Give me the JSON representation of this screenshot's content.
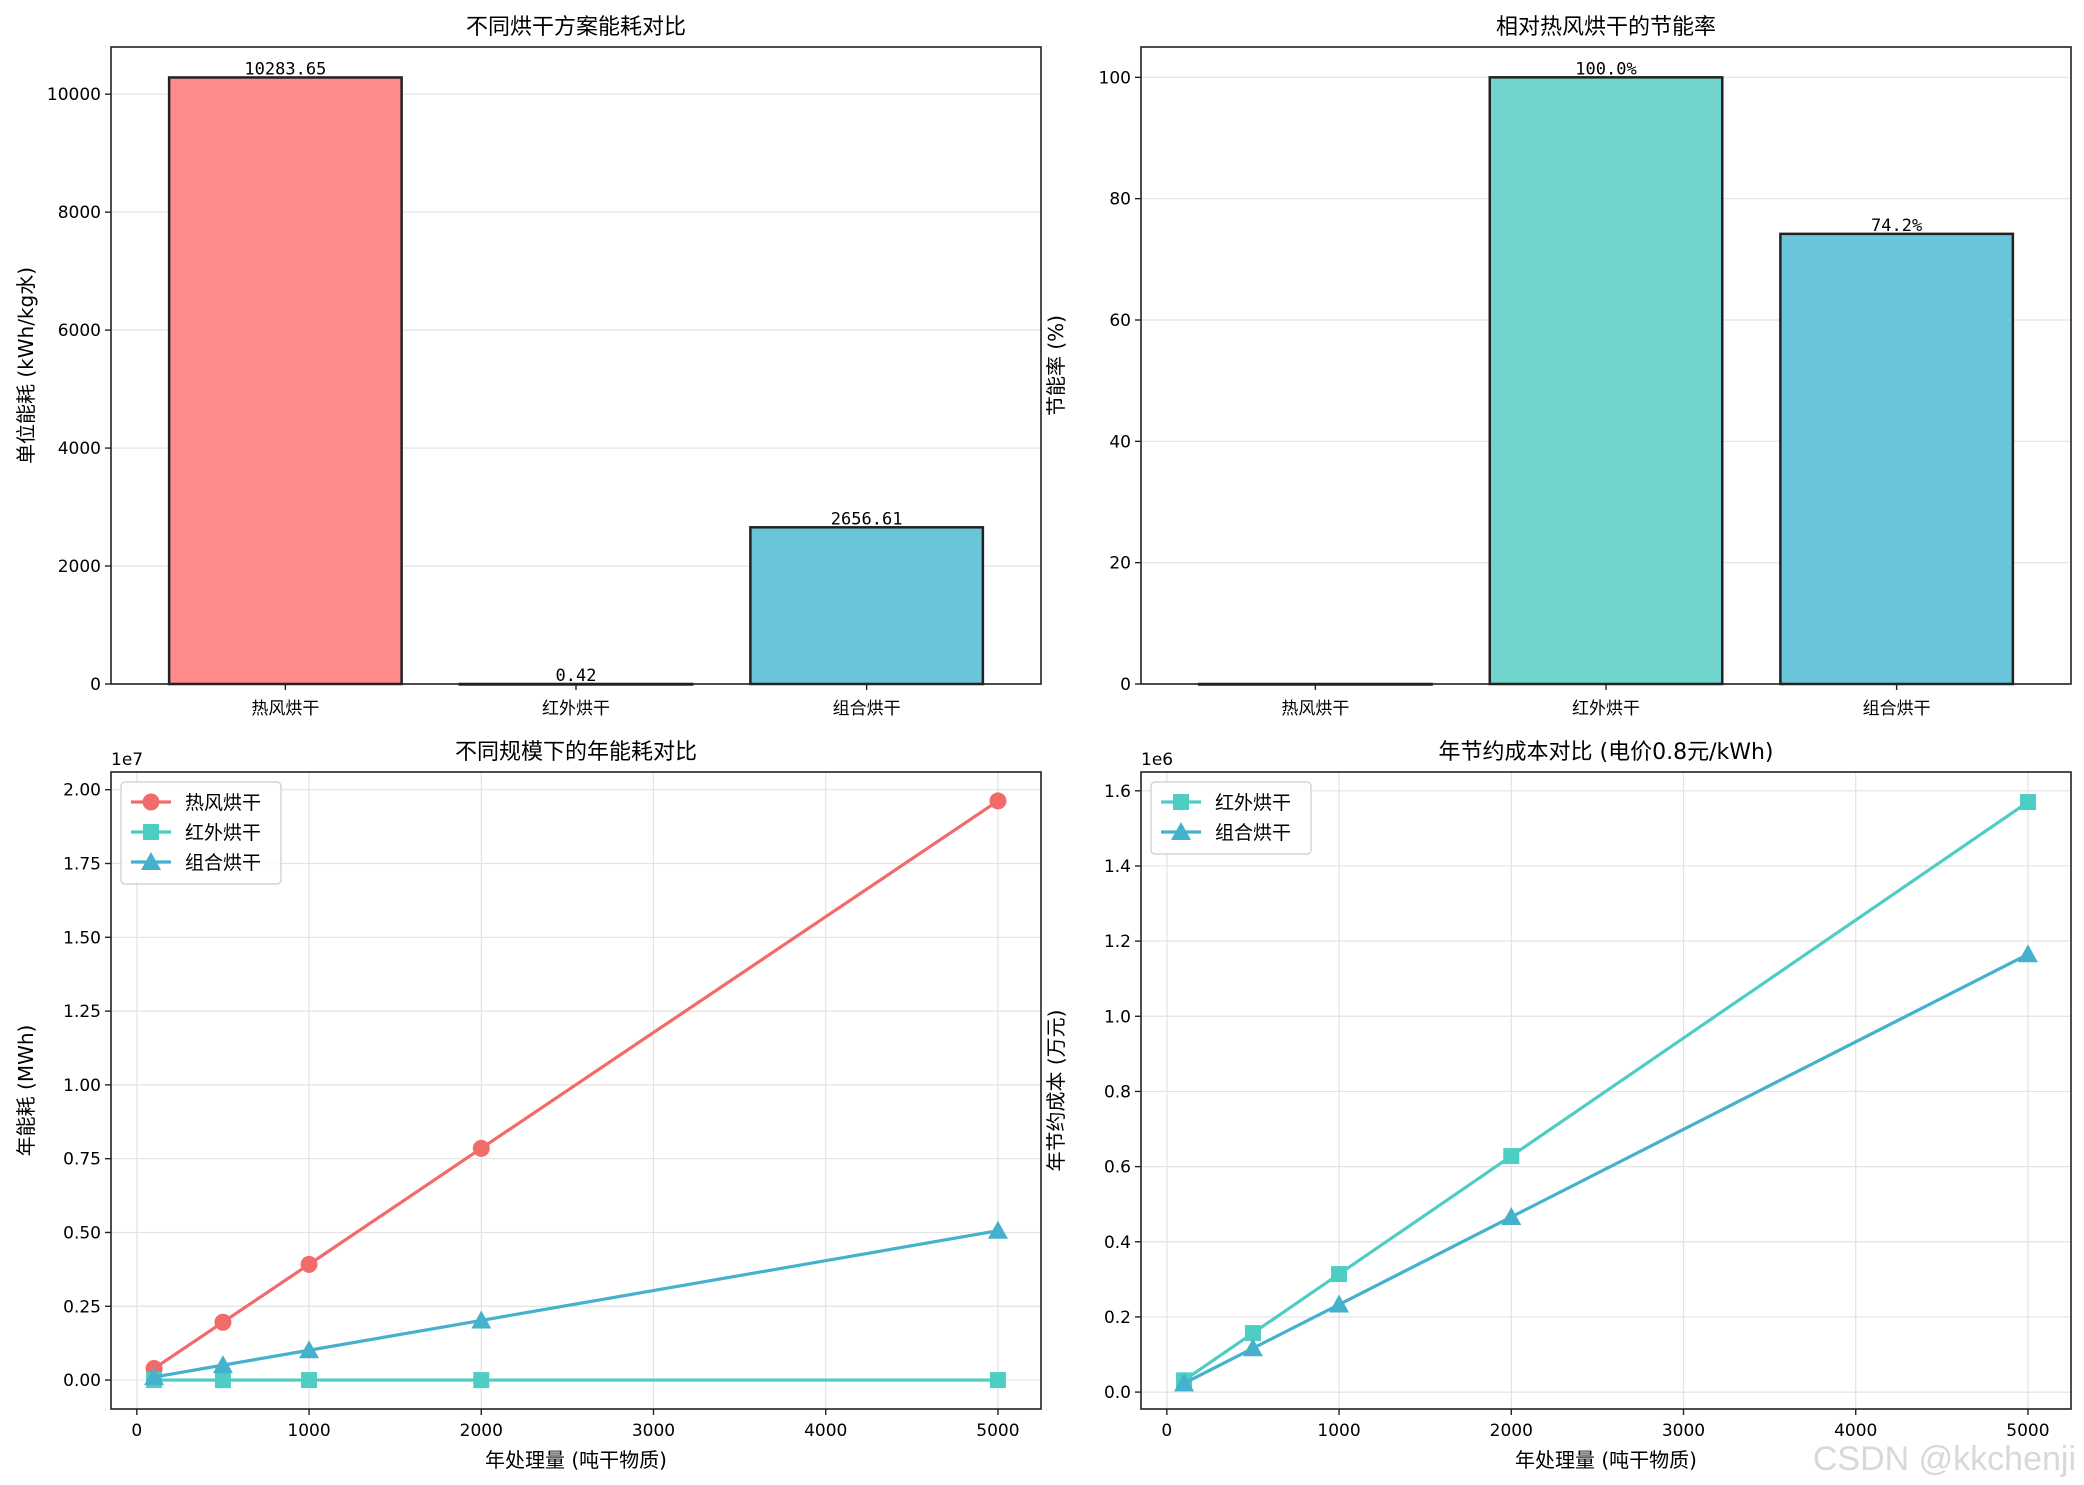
{
  "watermark": "CSDN @kkchenji",
  "chart_data": [
    {
      "type": "bar",
      "title": "不同烘干方案能耗对比",
      "xlabel": "",
      "ylabel": "单位能耗 (kWh/kg水)",
      "categories": [
        "热风烘干",
        "红外烘干",
        "组合烘干"
      ],
      "values": [
        10283.65,
        0.42,
        2656.61
      ],
      "value_labels": [
        "10283.65",
        "0.42",
        "2656.61"
      ],
      "colors": [
        "#ff8a8a",
        "#4ecdc4",
        "#6ac4da"
      ],
      "ylim": [
        0,
        10800
      ],
      "yticks": [
        0,
        2000,
        4000,
        6000,
        8000,
        10000
      ],
      "ytick_labels": [
        "0",
        "2000",
        "4000",
        "6000",
        "8000",
        "10000"
      ],
      "grid": true
    },
    {
      "type": "bar",
      "title": "相对热风烘干的节能率",
      "xlabel": "",
      "ylabel": "节能率 (%)",
      "categories": [
        "热风烘干",
        "红外烘干",
        "组合烘干"
      ],
      "values": [
        0,
        100.0,
        74.2
      ],
      "value_labels": [
        "",
        "100.0%",
        "74.2%"
      ],
      "colors": [
        "#ff8a8a",
        "#72d5cd",
        "#6ac4da"
      ],
      "ylim": [
        0,
        105
      ],
      "yticks": [
        0,
        20,
        40,
        60,
        80,
        100
      ],
      "ytick_labels": [
        "0",
        "20",
        "40",
        "60",
        "80",
        "100"
      ],
      "grid": true
    },
    {
      "type": "line",
      "title": "不同规模下的年能耗对比",
      "xlabel": "年处理量 (吨干物质)",
      "ylabel": "年能耗 (MWh)",
      "offset_label": "1e7",
      "x": [
        100,
        500,
        1000,
        2000,
        5000
      ],
      "series": [
        {
          "name": "热风烘干",
          "color": "#f26b6b",
          "marker": "circle",
          "values": [
            392000,
            1960000,
            3920000,
            7850000,
            19620000
          ]
        },
        {
          "name": "红外烘干",
          "color": "#4ecdc4",
          "marker": "square",
          "values": [
            0,
            0,
            0,
            0,
            0
          ]
        },
        {
          "name": "组合烘干",
          "color": "#45b1cd",
          "marker": "triangle",
          "values": [
            101000,
            506000,
            1010000,
            2020000,
            5060000
          ]
        }
      ],
      "xlim": [
        -150,
        5250
      ],
      "ylim": [
        -980000,
        20600000
      ],
      "xticks": [
        0,
        1000,
        2000,
        3000,
        4000,
        5000
      ],
      "xtick_labels": [
        "0",
        "1000",
        "2000",
        "3000",
        "4000",
        "5000"
      ],
      "yticks": [
        0,
        2500000,
        5000000,
        7500000,
        10000000,
        12500000,
        15000000,
        17500000,
        20000000
      ],
      "ytick_labels": [
        "0.00",
        "0.25",
        "0.50",
        "0.75",
        "1.00",
        "1.25",
        "1.50",
        "1.75",
        "2.00"
      ],
      "legend": "top-left",
      "grid": true
    },
    {
      "type": "line",
      "title": "年节约成本对比 (电价0.8元/kWh)",
      "xlabel": "年处理量 (吨干物质)",
      "ylabel": "年节约成本 (万元)",
      "offset_label": "1e6",
      "x": [
        100,
        500,
        1000,
        2000,
        5000
      ],
      "series": [
        {
          "name": "红外烘干",
          "color": "#4ecdc4",
          "marker": "square",
          "values": [
            31400,
            157000,
            314000,
            628000,
            1570000
          ]
        },
        {
          "name": "组合烘干",
          "color": "#45b1cd",
          "marker": "triangle",
          "values": [
            23300,
            116500,
            233000,
            466000,
            1165000
          ]
        }
      ],
      "xlim": [
        -150,
        5250
      ],
      "ylim": [
        -45000,
        1650000
      ],
      "xticks": [
        0,
        1000,
        2000,
        3000,
        4000,
        5000
      ],
      "xtick_labels": [
        "0",
        "1000",
        "2000",
        "3000",
        "4000",
        "5000"
      ],
      "yticks": [
        0,
        200000,
        400000,
        600000,
        800000,
        1000000,
        1200000,
        1400000,
        1600000
      ],
      "ytick_labels": [
        "0.0",
        "0.2",
        "0.4",
        "0.6",
        "0.8",
        "1.0",
        "1.2",
        "1.4",
        "1.6"
      ],
      "legend": "top-left",
      "grid": true
    }
  ]
}
